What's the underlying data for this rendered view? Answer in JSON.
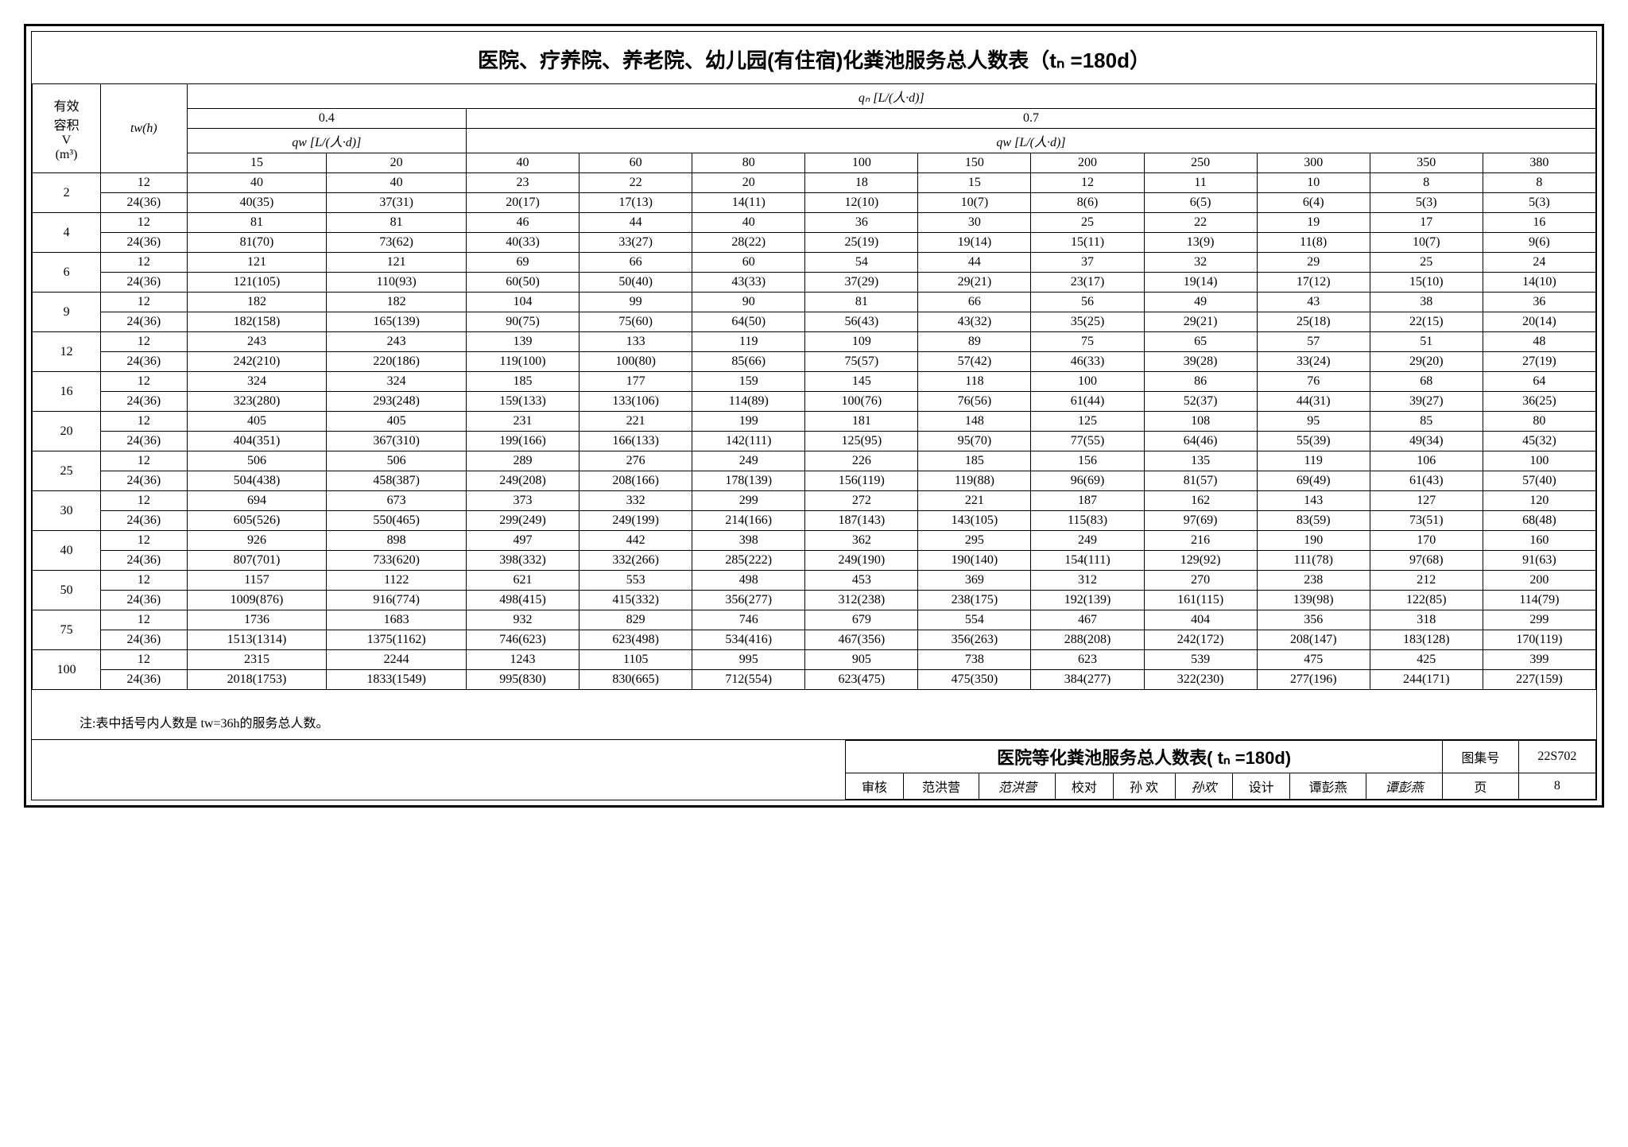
{
  "title": "医院、疗养院、养老院、幼儿园(有住宿)化粪池服务总人数表（tₙ =180d）",
  "title_fontsize": 26,
  "col_v_label": "有效\n容积\nV\n(m³)",
  "col_tw_label": "tw(h)",
  "qn_header": "qₙ [L/(人·d)]",
  "qw_header": "qw [L/(人·d)]",
  "group_04": "0.4",
  "group_07": "0.7",
  "qw_cols_04": [
    "15",
    "20"
  ],
  "qw_cols_07": [
    "40",
    "60",
    "80",
    "100",
    "150",
    "200",
    "250",
    "300",
    "350",
    "380"
  ],
  "tw_values": [
    "12",
    "24(36)"
  ],
  "data": {
    "rows": [
      {
        "v": "2",
        "r1": [
          "40",
          "40",
          "23",
          "22",
          "20",
          "18",
          "15",
          "12",
          "11",
          "10",
          "8",
          "8"
        ],
        "r2": [
          "40(35)",
          "37(31)",
          "20(17)",
          "17(13)",
          "14(11)",
          "12(10)",
          "10(7)",
          "8(6)",
          "6(5)",
          "6(4)",
          "5(3)",
          "5(3)"
        ]
      },
      {
        "v": "4",
        "r1": [
          "81",
          "81",
          "46",
          "44",
          "40",
          "36",
          "30",
          "25",
          "22",
          "19",
          "17",
          "16"
        ],
        "r2": [
          "81(70)",
          "73(62)",
          "40(33)",
          "33(27)",
          "28(22)",
          "25(19)",
          "19(14)",
          "15(11)",
          "13(9)",
          "11(8)",
          "10(7)",
          "9(6)"
        ]
      },
      {
        "v": "6",
        "r1": [
          "121",
          "121",
          "69",
          "66",
          "60",
          "54",
          "44",
          "37",
          "32",
          "29",
          "25",
          "24"
        ],
        "r2": [
          "121(105)",
          "110(93)",
          "60(50)",
          "50(40)",
          "43(33)",
          "37(29)",
          "29(21)",
          "23(17)",
          "19(14)",
          "17(12)",
          "15(10)",
          "14(10)"
        ]
      },
      {
        "v": "9",
        "r1": [
          "182",
          "182",
          "104",
          "99",
          "90",
          "81",
          "66",
          "56",
          "49",
          "43",
          "38",
          "36"
        ],
        "r2": [
          "182(158)",
          "165(139)",
          "90(75)",
          "75(60)",
          "64(50)",
          "56(43)",
          "43(32)",
          "35(25)",
          "29(21)",
          "25(18)",
          "22(15)",
          "20(14)"
        ]
      },
      {
        "v": "12",
        "r1": [
          "243",
          "243",
          "139",
          "133",
          "119",
          "109",
          "89",
          "75",
          "65",
          "57",
          "51",
          "48"
        ],
        "r2": [
          "242(210)",
          "220(186)",
          "119(100)",
          "100(80)",
          "85(66)",
          "75(57)",
          "57(42)",
          "46(33)",
          "39(28)",
          "33(24)",
          "29(20)",
          "27(19)"
        ]
      },
      {
        "v": "16",
        "r1": [
          "324",
          "324",
          "185",
          "177",
          "159",
          "145",
          "118",
          "100",
          "86",
          "76",
          "68",
          "64"
        ],
        "r2": [
          "323(280)",
          "293(248)",
          "159(133)",
          "133(106)",
          "114(89)",
          "100(76)",
          "76(56)",
          "61(44)",
          "52(37)",
          "44(31)",
          "39(27)",
          "36(25)"
        ]
      },
      {
        "v": "20",
        "r1": [
          "405",
          "405",
          "231",
          "221",
          "199",
          "181",
          "148",
          "125",
          "108",
          "95",
          "85",
          "80"
        ],
        "r2": [
          "404(351)",
          "367(310)",
          "199(166)",
          "166(133)",
          "142(111)",
          "125(95)",
          "95(70)",
          "77(55)",
          "64(46)",
          "55(39)",
          "49(34)",
          "45(32)"
        ]
      },
      {
        "v": "25",
        "r1": [
          "506",
          "506",
          "289",
          "276",
          "249",
          "226",
          "185",
          "156",
          "135",
          "119",
          "106",
          "100"
        ],
        "r2": [
          "504(438)",
          "458(387)",
          "249(208)",
          "208(166)",
          "178(139)",
          "156(119)",
          "119(88)",
          "96(69)",
          "81(57)",
          "69(49)",
          "61(43)",
          "57(40)"
        ]
      },
      {
        "v": "30",
        "r1": [
          "694",
          "673",
          "373",
          "332",
          "299",
          "272",
          "221",
          "187",
          "162",
          "143",
          "127",
          "120"
        ],
        "r2": [
          "605(526)",
          "550(465)",
          "299(249)",
          "249(199)",
          "214(166)",
          "187(143)",
          "143(105)",
          "115(83)",
          "97(69)",
          "83(59)",
          "73(51)",
          "68(48)"
        ]
      },
      {
        "v": "40",
        "r1": [
          "926",
          "898",
          "497",
          "442",
          "398",
          "362",
          "295",
          "249",
          "216",
          "190",
          "170",
          "160"
        ],
        "r2": [
          "807(701)",
          "733(620)",
          "398(332)",
          "332(266)",
          "285(222)",
          "249(190)",
          "190(140)",
          "154(111)",
          "129(92)",
          "111(78)",
          "97(68)",
          "91(63)"
        ]
      },
      {
        "v": "50",
        "r1": [
          "1157",
          "1122",
          "621",
          "553",
          "498",
          "453",
          "369",
          "312",
          "270",
          "238",
          "212",
          "200"
        ],
        "r2": [
          "1009(876)",
          "916(774)",
          "498(415)",
          "415(332)",
          "356(277)",
          "312(238)",
          "238(175)",
          "192(139)",
          "161(115)",
          "139(98)",
          "122(85)",
          "114(79)"
        ]
      },
      {
        "v": "75",
        "r1": [
          "1736",
          "1683",
          "932",
          "829",
          "746",
          "679",
          "554",
          "467",
          "404",
          "356",
          "318",
          "299"
        ],
        "r2": [
          "1513(1314)",
          "1375(1162)",
          "746(623)",
          "623(498)",
          "534(416)",
          "467(356)",
          "356(263)",
          "288(208)",
          "242(172)",
          "208(147)",
          "183(128)",
          "170(119)"
        ]
      },
      {
        "v": "100",
        "r1": [
          "2315",
          "2244",
          "1243",
          "1105",
          "995",
          "905",
          "738",
          "623",
          "539",
          "475",
          "425",
          "399"
        ],
        "r2": [
          "2018(1753)",
          "1833(1549)",
          "995(830)",
          "830(665)",
          "712(554)",
          "623(475)",
          "475(350)",
          "384(277)",
          "322(230)",
          "277(196)",
          "244(171)",
          "227(159)"
        ]
      }
    ]
  },
  "note": "注:表中括号内人数是 tw=36h的服务总人数。",
  "footer": {
    "title": "医院等化粪池服务总人数表( tₙ =180d)",
    "catalog_label": "图集号",
    "catalog_value": "22S702",
    "page_label": "页",
    "page_value": "8",
    "审核_label": "审核",
    "审核_name": "范洪营",
    "审核_sig": "范洪营",
    "校对_label": "校对",
    "校对_name": "孙 欢",
    "校对_sig": "孙欢",
    "设计_label": "设计",
    "设计_name": "谭彭燕",
    "设计_sig": "谭彭燕"
  },
  "styling": {
    "background_color": "#ffffff",
    "border_color": "#000000",
    "outer_border_width": 3,
    "inner_border_width": 1,
    "header_fontsize": 16,
    "cell_fontsize": 16,
    "note_fontsize": 16,
    "footer_title_fontsize": 22
  }
}
